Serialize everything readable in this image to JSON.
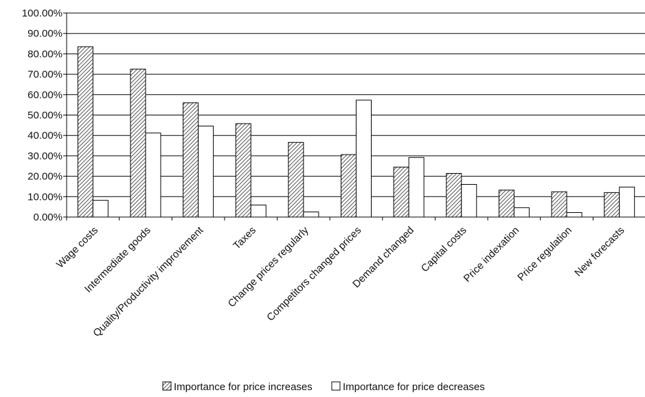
{
  "chart_data": {
    "type": "bar",
    "categories": [
      "Wage costs",
      "Intermediate goods",
      "Quality/Productivity improvement",
      "Taxes",
      "Change prices regularly",
      "Competitors changed prices",
      "Demand changed",
      "Capital costs",
      "Price indexation",
      "Price regulation",
      "New forecasts"
    ],
    "series": [
      {
        "name": "Importance for price increases",
        "values": [
          83.5,
          72.5,
          56.0,
          45.8,
          36.6,
          30.6,
          24.5,
          21.4,
          13.2,
          12.4,
          12.0
        ]
      },
      {
        "name": "Importance for price decreases",
        "values": [
          8.2,
          41.2,
          44.6,
          5.9,
          2.5,
          57.3,
          29.2,
          16.0,
          4.6,
          2.2,
          14.7
        ]
      }
    ],
    "ylim": [
      0,
      100
    ],
    "yticks": [
      "0.00%",
      "10.00%",
      "20.00%",
      "30.00%",
      "40.00%",
      "50.00%",
      "60.00%",
      "70.00%",
      "80.00%",
      "90.00%",
      "100.00%"
    ],
    "grid": true,
    "legend_position": "bottom"
  }
}
